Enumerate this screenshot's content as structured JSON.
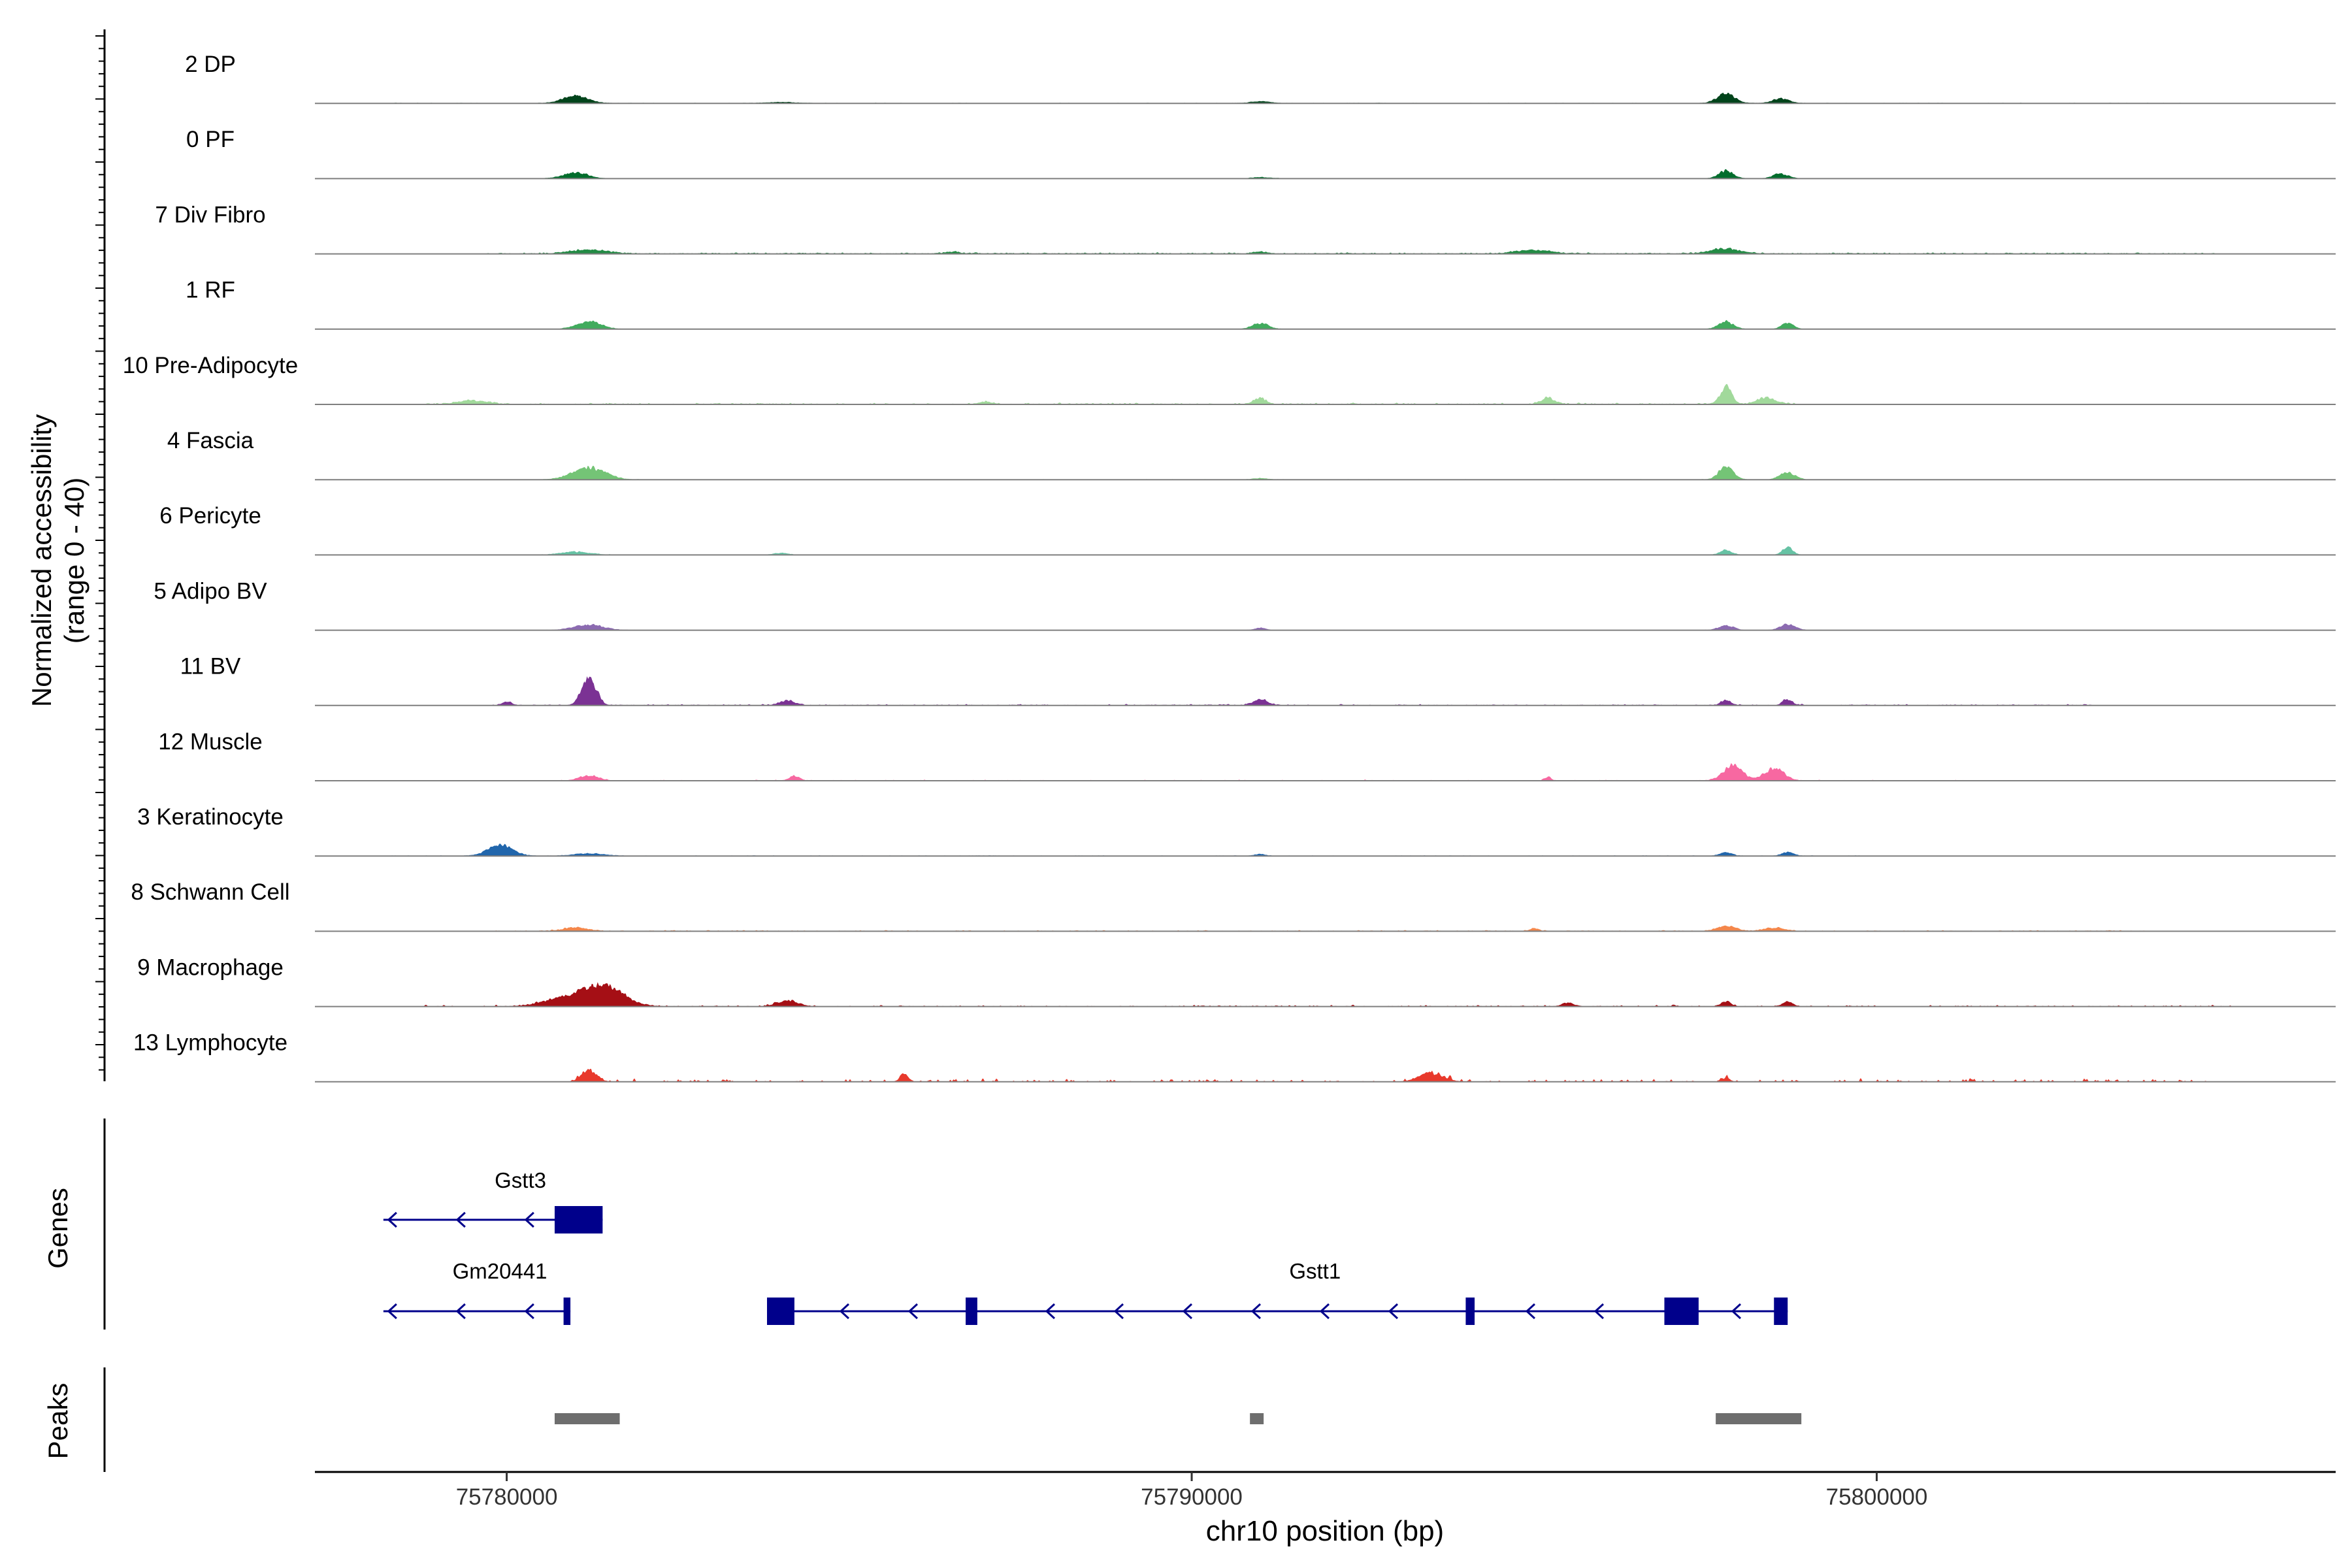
{
  "chart_data": {
    "type": "area",
    "title": "",
    "ylabel_line1": "Normalized accessibility",
    "ylabel_line2": "(range 0 - 40)",
    "genes_label": "Genes",
    "peaks_label": "Peaks",
    "xlabel": "chr10 position (bp)",
    "xlim": [
      75777200,
      75806700
    ],
    "ylim": [
      0,
      40
    ],
    "x_ticks": [
      {
        "value": 75780000,
        "label": "75780000"
      },
      {
        "value": 75790000,
        "label": "75790000"
      },
      {
        "value": 75800000,
        "label": "75800000"
      }
    ],
    "tracks": [
      {
        "name": "2 DP",
        "color": "#00441b",
        "range": [
          75778200,
          75804500
        ],
        "noise": 0.25,
        "density": 0.9,
        "peaks": [
          [
            75781000,
            6,
            260
          ],
          [
            75797800,
            8,
            180
          ],
          [
            75798600,
            4,
            160
          ],
          [
            75791000,
            1.5,
            200
          ],
          [
            75784000,
            0.8,
            300
          ]
        ]
      },
      {
        "name": "0 PF",
        "color": "#006d2c",
        "range": [
          75778200,
          75804500
        ],
        "noise": 0.2,
        "density": 0.85,
        "peaks": [
          [
            75781000,
            5,
            240
          ],
          [
            75797800,
            6,
            150
          ],
          [
            75798600,
            4,
            150
          ],
          [
            75791000,
            1,
            200
          ]
        ]
      },
      {
        "name": "7 Div Fibro",
        "color": "#238b45",
        "range": [
          75779700,
          75805000
        ],
        "noise": 0.9,
        "density": 0.55,
        "peaks": [
          [
            75781200,
            3,
            400
          ],
          [
            75797800,
            4,
            300
          ],
          [
            75795000,
            3,
            350
          ],
          [
            75791000,
            1.5,
            150
          ],
          [
            75786500,
            1.5,
            150
          ]
        ]
      },
      {
        "name": "1 RF",
        "color": "#41ab5d",
        "range": [
          75780000,
          75799200
        ],
        "noise": 0.2,
        "density": 0.5,
        "peaks": [
          [
            75781200,
            6,
            250
          ],
          [
            75791000,
            5,
            160
          ],
          [
            75797800,
            6,
            150
          ],
          [
            75798700,
            5,
            120
          ]
        ]
      },
      {
        "name": "10 Pre-Adipocyte",
        "color": "#a1d99b",
        "range": [
          75778800,
          75798800
        ],
        "noise": 1.2,
        "density": 0.35,
        "peaks": [
          [
            75779500,
            3,
            300
          ],
          [
            75797800,
            14,
            120
          ],
          [
            75798400,
            5,
            200
          ],
          [
            75791000,
            5,
            120
          ],
          [
            75795200,
            5,
            150
          ],
          [
            75787000,
            2,
            150
          ]
        ]
      },
      {
        "name": "4 Fascia",
        "color": "#74c476",
        "range": [
          75780000,
          75800800
        ],
        "noise": 0.25,
        "density": 0.45,
        "peaks": [
          [
            75781200,
            10,
            330
          ],
          [
            75797800,
            10,
            150
          ],
          [
            75798700,
            6,
            150
          ],
          [
            75791000,
            1,
            150
          ]
        ]
      },
      {
        "name": "6 Pericyte",
        "color": "#66c2a4",
        "range": [
          75778500,
          75805500
        ],
        "noise": 0.3,
        "density": 0.35,
        "peaks": [
          [
            75781000,
            2.5,
            300
          ],
          [
            75797800,
            4,
            120
          ],
          [
            75798700,
            7,
            100
          ],
          [
            75784000,
            1.5,
            150
          ]
        ]
      },
      {
        "name": "5 Adipo BV",
        "color": "#8c6bb1",
        "range": [
          75780000,
          75804000
        ],
        "noise": 0.2,
        "density": 0.35,
        "peaks": [
          [
            75781200,
            4.5,
            300
          ],
          [
            75797800,
            4,
            150
          ],
          [
            75798700,
            5,
            150
          ],
          [
            75791000,
            2,
            100
          ]
        ]
      },
      {
        "name": "11 BV",
        "color": "#7b3294",
        "range": [
          75779800,
          75803200
        ],
        "noise": 1.0,
        "density": 0.3,
        "peaks": [
          [
            75781200,
            22,
            150
          ],
          [
            75784100,
            4,
            150
          ],
          [
            75791000,
            5,
            150
          ],
          [
            75797800,
            4,
            100
          ],
          [
            75798700,
            5,
            100
          ],
          [
            75780000,
            3,
            100
          ]
        ]
      },
      {
        "name": "12 Muscle",
        "color": "#f768a1",
        "range": [
          75780800,
          75801800
        ],
        "noise": 0.8,
        "density": 0.18,
        "peaks": [
          [
            75781200,
            4,
            200
          ],
          [
            75784200,
            4,
            100
          ],
          [
            75797900,
            12,
            200
          ],
          [
            75798500,
            10,
            200
          ],
          [
            75795200,
            3,
            60
          ]
        ]
      },
      {
        "name": "3 Keratinocyte",
        "color": "#2166ac",
        "range": [
          75778300,
          75800300
        ],
        "noise": 0.3,
        "density": 0.6,
        "peaks": [
          [
            75779900,
            9,
            250
          ],
          [
            75781200,
            2,
            300
          ],
          [
            75797800,
            3,
            120
          ],
          [
            75798700,
            3,
            120
          ],
          [
            75791000,
            1.5,
            100
          ]
        ]
      },
      {
        "name": "8 Schwann Cell",
        "color": "#f4874b",
        "range": [
          75779800,
          75803900
        ],
        "noise": 0.7,
        "density": 0.4,
        "peaks": [
          [
            75781000,
            3,
            250
          ],
          [
            75797800,
            4,
            200
          ],
          [
            75798500,
            3,
            200
          ],
          [
            75795000,
            2,
            100
          ]
        ]
      },
      {
        "name": "9 Macrophage",
        "color": "#a50f15",
        "range": [
          75778800,
          75805200
        ],
        "noise": 1.2,
        "density": 0.22,
        "peaks": [
          [
            75781400,
            18,
            400
          ],
          [
            75780800,
            6,
            400
          ],
          [
            75784100,
            5,
            200
          ],
          [
            75797800,
            4,
            100
          ],
          [
            75798700,
            4,
            100
          ],
          [
            75795500,
            3,
            120
          ]
        ]
      },
      {
        "name": "13 Lymphocyte",
        "color": "#e8392c",
        "range": [
          75780800,
          75804800
        ],
        "noise": 3.0,
        "density": 0.14,
        "peaks": [
          [
            75781200,
            10,
            150
          ],
          [
            75785800,
            7,
            80
          ],
          [
            75793500,
            7,
            250
          ],
          [
            75797800,
            3,
            80
          ]
        ]
      }
    ],
    "genes": [
      {
        "name": "Gstt3",
        "row": 0,
        "strand": "-",
        "start": 75778200,
        "end": 75781400,
        "exons": [
          [
            75780700,
            75781400
          ]
        ]
      },
      {
        "name": "Gm20441",
        "row": 1,
        "strand": "-",
        "start": 75778200,
        "end": 75780930,
        "exons": [
          [
            75780830,
            75780930
          ]
        ]
      },
      {
        "name": "Gstt1",
        "row": 1,
        "strand": "-",
        "start": 75783800,
        "end": 75798700,
        "exons": [
          [
            75783800,
            75784200
          ],
          [
            75786700,
            75786870
          ],
          [
            75794000,
            75794130
          ],
          [
            75796900,
            75797400
          ],
          [
            75798500,
            75798700
          ]
        ]
      }
    ],
    "peaks_regions": [
      [
        75780700,
        75781650
      ],
      [
        75790850,
        75791050
      ],
      [
        75797650,
        75798900
      ]
    ],
    "colors": {
      "gene": "#00008b",
      "peak": "#6e6e6e",
      "baseline": "#7f7f7f",
      "axis": "#000000"
    }
  }
}
